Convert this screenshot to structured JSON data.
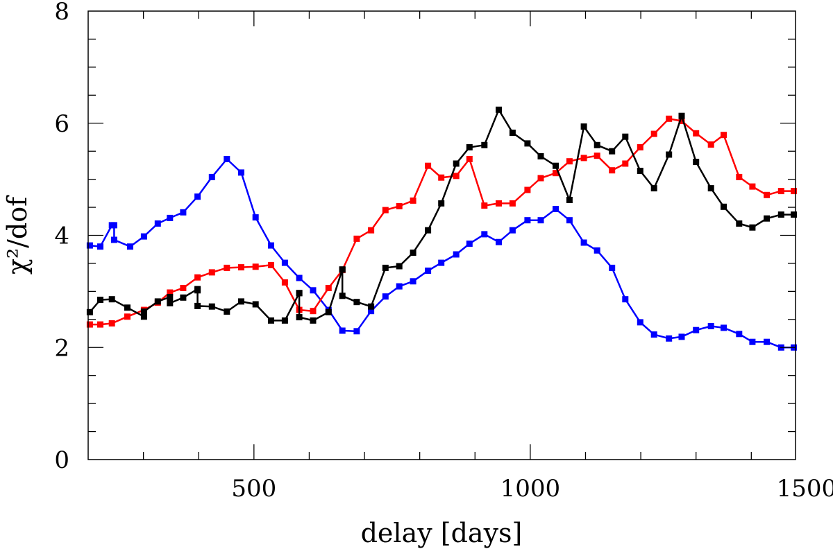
{
  "chart_data": {
    "type": "line",
    "xlabel": "delay [days]",
    "ylabel": "χ²/dof",
    "xlim": [
      200,
      1480
    ],
    "ylim": [
      0,
      8
    ],
    "x_ticks": [
      500,
      1000,
      1500
    ],
    "y_ticks": [
      0,
      2,
      4,
      6,
      8
    ],
    "x_tick_labels": [
      "500",
      "1000",
      "1500"
    ],
    "y_tick_labels": [
      "0",
      "2",
      "4",
      "6",
      "8"
    ],
    "grid": false,
    "series": [
      {
        "color": "#0000ff",
        "x": [
          203,
          222,
          243,
          247,
          247,
          276,
          301,
          326,
          348,
          372,
          398,
          424,
          451,
          477,
          503,
          531,
          556,
          582,
          607,
          635,
          660,
          686,
          712,
          738,
          763,
          788,
          815,
          839,
          866,
          890,
          917,
          943,
          968,
          995,
          1019,
          1046,
          1071,
          1097,
          1121,
          1148,
          1172,
          1199,
          1224,
          1251,
          1274,
          1300,
          1327,
          1350,
          1378,
          1402,
          1428,
          1454,
          1477
        ],
        "y": [
          3.82,
          3.8,
          4.18,
          4.18,
          3.92,
          3.8,
          3.98,
          4.21,
          4.31,
          4.41,
          4.69,
          5.04,
          5.36,
          5.12,
          4.32,
          3.82,
          3.51,
          3.24,
          3.02,
          2.67,
          2.3,
          2.29,
          2.65,
          2.91,
          3.09,
          3.18,
          3.37,
          3.51,
          3.66,
          3.85,
          4.02,
          3.88,
          4.09,
          4.27,
          4.27,
          4.47,
          4.27,
          3.87,
          3.73,
          3.42,
          2.86,
          2.45,
          2.23,
          2.16,
          2.19,
          2.31,
          2.38,
          2.35,
          2.24,
          2.1,
          2.1,
          2.0,
          2.0
        ]
      },
      {
        "color": "#ff0000",
        "x": [
          203,
          222,
          243,
          271,
          301,
          326,
          348,
          372,
          398,
          424,
          451,
          477,
          503,
          531,
          556,
          582,
          607,
          635,
          660,
          686,
          712,
          738,
          763,
          788,
          815,
          839,
          866,
          890,
          917,
          943,
          968,
          995,
          1019,
          1046,
          1071,
          1097,
          1121,
          1148,
          1172,
          1199,
          1224,
          1251,
          1274,
          1300,
          1327,
          1350,
          1378,
          1402,
          1428,
          1454,
          1477
        ],
        "y": [
          2.41,
          2.41,
          2.43,
          2.55,
          2.67,
          2.8,
          2.98,
          3.06,
          3.25,
          3.34,
          3.42,
          3.43,
          3.44,
          3.47,
          3.16,
          2.67,
          2.65,
          3.06,
          3.38,
          3.94,
          4.09,
          4.45,
          4.52,
          4.62,
          5.24,
          5.03,
          5.06,
          5.36,
          4.53,
          4.57,
          4.57,
          4.81,
          5.02,
          5.11,
          5.32,
          5.38,
          5.42,
          5.16,
          5.28,
          5.57,
          5.81,
          6.08,
          6.04,
          5.82,
          5.62,
          5.79,
          5.04,
          4.87,
          4.72,
          4.79,
          4.79
        ]
      },
      {
        "color": "#000000",
        "x": [
          203,
          222,
          243,
          271,
          301,
          301,
          326,
          348,
          348,
          372,
          398,
          398,
          398,
          424,
          451,
          477,
          503,
          531,
          556,
          582,
          582,
          582,
          607,
          635,
          660,
          660,
          660,
          686,
          712,
          738,
          763,
          788,
          815,
          839,
          866,
          890,
          917,
          943,
          968,
          995,
          1019,
          1046,
          1071,
          1097,
          1121,
          1148,
          1172,
          1199,
          1224,
          1251,
          1274,
          1300,
          1327,
          1350,
          1378,
          1402,
          1428,
          1454,
          1477
        ],
        "y": [
          2.63,
          2.85,
          2.86,
          2.71,
          2.55,
          2.64,
          2.82,
          2.9,
          2.79,
          2.89,
          3.04,
          3.02,
          2.74,
          2.73,
          2.64,
          2.82,
          2.77,
          2.48,
          2.48,
          2.97,
          2.97,
          2.54,
          2.48,
          2.63,
          3.39,
          3.39,
          2.92,
          2.81,
          2.73,
          3.42,
          3.45,
          3.69,
          4.09,
          4.57,
          5.28,
          5.57,
          5.61,
          6.24,
          5.83,
          5.64,
          5.41,
          5.24,
          4.63,
          5.94,
          5.61,
          5.5,
          5.76,
          5.15,
          4.84,
          5.44,
          6.13,
          5.31,
          4.84,
          4.51,
          4.21,
          4.14,
          4.3,
          4.37,
          4.37
        ]
      }
    ]
  }
}
